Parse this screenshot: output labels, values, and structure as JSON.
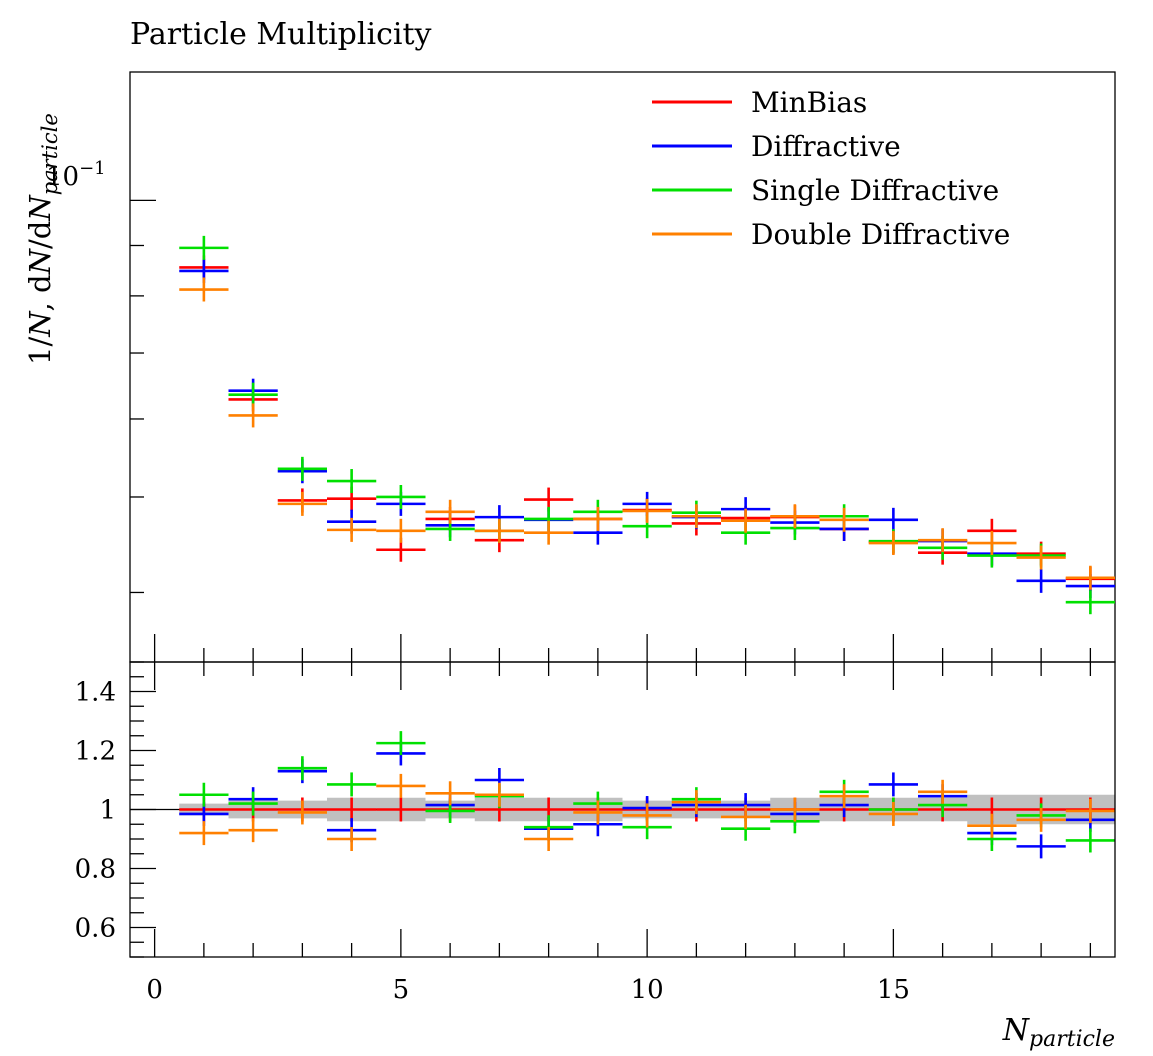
{
  "chart_data": [
    {
      "type": "scatter",
      "title": "Particle Multiplicity",
      "ylabel_parts": [
        "1/",
        "N",
        ", d",
        "N",
        "/d",
        "N",
        "particle"
      ],
      "yscale": "log",
      "ylim": [
        0.034,
        0.135
      ],
      "y_tick_label": "10",
      "y_tick_exponent": "−1",
      "xlim": [
        -0.5,
        19.5
      ],
      "legend_position": "top-right",
      "series": [
        {
          "name": "MinBias",
          "color": "#ff0000",
          "x": [
            1,
            2,
            3,
            4,
            5,
            6,
            7,
            8,
            9,
            10,
            11,
            12,
            13,
            14,
            15,
            16,
            17,
            18,
            19
          ],
          "y": [
            0.0855,
            0.0628,
            0.0496,
            0.0498,
            0.0442,
            0.0475,
            0.0452,
            0.0497,
            0.0475,
            0.0485,
            0.047,
            0.0476,
            0.0477,
            0.0464,
            0.045,
            0.0439,
            0.0462,
            0.0438,
            0.0413
          ]
        },
        {
          "name": "Diffractive",
          "color": "#0000ff",
          "x": [
            1,
            2,
            3,
            4,
            5,
            6,
            7,
            8,
            9,
            10,
            11,
            12,
            13,
            14,
            15,
            16,
            17,
            18,
            19
          ],
          "y": [
            0.0848,
            0.0641,
            0.0531,
            0.0472,
            0.0492,
            0.0468,
            0.0477,
            0.0474,
            0.046,
            0.0492,
            0.0477,
            0.0486,
            0.0471,
            0.0464,
            0.0474,
            0.0451,
            0.0438,
            0.0411,
            0.0406
          ]
        },
        {
          "name": "Single Diffractive",
          "color": "#00e000",
          "x": [
            1,
            2,
            3,
            4,
            5,
            6,
            7,
            8,
            9,
            10,
            11,
            12,
            13,
            14,
            15,
            16,
            17,
            18,
            19
          ],
          "y": [
            0.0895,
            0.0635,
            0.0534,
            0.0519,
            0.05,
            0.0464,
            0.0462,
            0.0475,
            0.0483,
            0.0467,
            0.0482,
            0.046,
            0.0465,
            0.0478,
            0.0451,
            0.0444,
            0.0436,
            0.0436,
            0.0391
          ]
        },
        {
          "name": "Double Diffractive",
          "color": "#ff8000",
          "x": [
            1,
            2,
            3,
            4,
            5,
            6,
            7,
            8,
            9,
            10,
            11,
            12,
            13,
            14,
            15,
            16,
            17,
            18,
            19
          ],
          "y": [
            0.0812,
            0.0605,
            0.0492,
            0.0463,
            0.0462,
            0.0483,
            0.0462,
            0.046,
            0.0475,
            0.0484,
            0.0478,
            0.0473,
            0.0478,
            0.0474,
            0.0449,
            0.0452,
            0.0449,
            0.0434,
            0.0414
          ]
        }
      ]
    },
    {
      "type": "scatter",
      "xlabel_parts": [
        "N",
        "particle"
      ],
      "x_ticks": [
        0,
        5,
        10,
        15
      ],
      "ylim": [
        0.5,
        1.5
      ],
      "y_ticks": [
        0.6,
        0.8,
        1,
        1.2,
        1.4
      ],
      "reference": 1,
      "band": {
        "color": "#c0c0c0",
        "x": [
          0,
          1,
          2,
          3,
          4,
          5,
          6,
          7,
          8,
          9,
          10,
          11,
          12,
          13,
          14,
          15,
          16,
          17,
          18,
          19
        ],
        "lo": [
          1.0,
          0.98,
          0.97,
          0.97,
          0.96,
          0.96,
          0.97,
          0.96,
          0.96,
          0.96,
          0.97,
          0.97,
          0.97,
          0.96,
          0.96,
          0.96,
          0.96,
          0.95,
          0.95,
          0.95
        ],
        "hi": [
          1.0,
          1.02,
          1.03,
          1.03,
          1.04,
          1.04,
          1.03,
          1.04,
          1.04,
          1.04,
          1.03,
          1.03,
          1.03,
          1.04,
          1.04,
          1.04,
          1.04,
          1.05,
          1.05,
          1.05
        ]
      },
      "series": [
        {
          "name": "MinBias",
          "color": "#ff0000",
          "x": [
            1,
            2,
            3,
            4,
            5,
            6,
            7,
            8,
            9,
            10,
            11,
            12,
            13,
            14,
            15,
            16,
            17,
            18,
            19
          ],
          "y": [
            1.0,
            1.0,
            1.0,
            1.0,
            1.0,
            1.0,
            1.0,
            1.0,
            1.0,
            1.0,
            1.0,
            1.0,
            1.0,
            1.0,
            1.0,
            1.0,
            1.0,
            1.0,
            1.0
          ]
        },
        {
          "name": "Diffractive",
          "color": "#0000ff",
          "x": [
            1,
            2,
            3,
            4,
            5,
            6,
            7,
            8,
            9,
            10,
            11,
            12,
            13,
            14,
            15,
            16,
            17,
            18,
            19
          ],
          "y": [
            0.985,
            1.035,
            1.13,
            0.93,
            1.19,
            1.015,
            1.1,
            0.935,
            0.95,
            1.005,
            1.015,
            1.015,
            0.985,
            1.015,
            1.085,
            1.045,
            0.92,
            0.875,
            0.965
          ]
        },
        {
          "name": "Single Diffractive",
          "color": "#00e000",
          "x": [
            1,
            2,
            3,
            4,
            5,
            6,
            7,
            8,
            9,
            10,
            11,
            12,
            13,
            14,
            15,
            16,
            17,
            18,
            19
          ],
          "y": [
            1.05,
            1.02,
            1.14,
            1.085,
            1.225,
            0.995,
            1.045,
            0.94,
            1.02,
            0.94,
            1.035,
            0.935,
            0.96,
            1.06,
            1.0,
            1.015,
            0.9,
            0.98,
            0.895
          ]
        },
        {
          "name": "Double Diffractive",
          "color": "#ff8000",
          "x": [
            1,
            2,
            3,
            4,
            5,
            6,
            7,
            8,
            9,
            10,
            11,
            12,
            13,
            14,
            15,
            16,
            17,
            18,
            19
          ],
          "y": [
            0.92,
            0.93,
            0.99,
            0.9,
            1.08,
            1.055,
            1.05,
            0.9,
            0.99,
            0.98,
            1.025,
            0.975,
            1.0,
            1.045,
            0.985,
            1.06,
            0.945,
            0.965,
            0.995
          ]
        }
      ]
    }
  ]
}
